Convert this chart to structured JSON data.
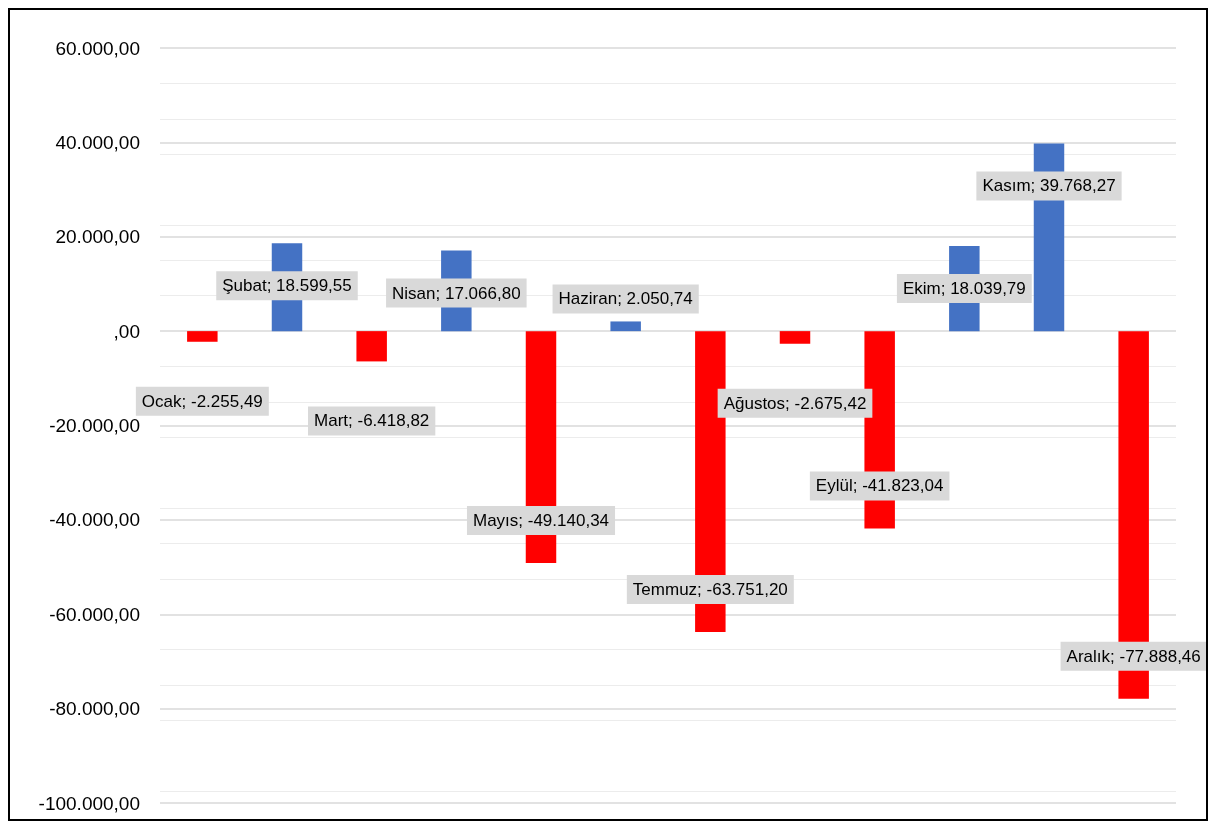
{
  "chart_data": {
    "type": "bar",
    "categories": [
      null,
      null,
      null,
      null,
      null,
      null,
      null,
      null,
      null,
      null,
      null,
      null
    ],
    "values": [
      -2255.49,
      18599.55,
      -6418.82,
      17066.8,
      -49140.34,
      2050.74,
      -63751.2,
      -2675.42,
      -41823.04,
      18039.79,
      39768.27,
      -77888.46
    ],
    "colors": [
      "#ff0000",
      "#4472c4",
      "#ff0000",
      "#4472c4",
      "#ff0000",
      "#4472c4",
      "#ff0000",
      "#ff0000",
      "#ff0000",
      "#4472c4",
      "#4472c4",
      "#ff0000"
    ],
    "value_labels": [
      "Ocak; -2.255,49",
      "Şubat; 18.599,55",
      "Mart; -6.418,82",
      "Nisan; 17.066,80",
      "Mayıs; -49.140,34",
      "Haziran; 2.050,74",
      "Temmuz; -63.751,20",
      "Ağustos; -2.675,42",
      "Eylül; -41.823,04",
      "Ekim; 18.039,79",
      "Kasım; 39.768,27",
      "Aralık; -77.888,46"
    ],
    "ylim": [
      -100000,
      60000
    ],
    "yticks": [
      {
        "value": 60000,
        "label": "60.000,00"
      },
      {
        "value": 40000,
        "label": "40.000,00"
      },
      {
        "value": 20000,
        "label": "20.000,00"
      },
      {
        "value": 0,
        "label": ",00"
      },
      {
        "value": -20000,
        "label": "-20.000,00"
      },
      {
        "value": -40000,
        "label": "-40.000,00"
      },
      {
        "value": -60000,
        "label": "-60.000,00"
      },
      {
        "value": -80000,
        "label": "-80.000,00"
      },
      {
        "value": -100000,
        "label": "-100.000,00"
      }
    ],
    "grid": true,
    "tick_labels": "y"
  }
}
